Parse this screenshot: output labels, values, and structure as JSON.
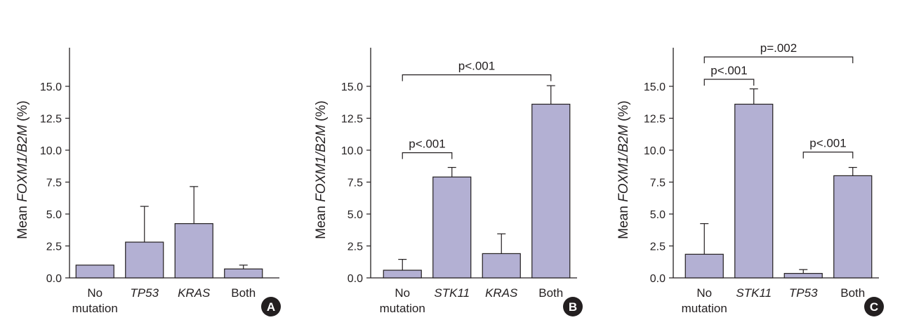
{
  "colors": {
    "bar_fill": "#b3b0d3",
    "bar_stroke": "#231f20",
    "axis": "#231f20",
    "badge": "#231f20",
    "badge_text": "#ffffff"
  },
  "chart_data": [
    {
      "type": "bar",
      "panel_label": "A",
      "ylabel": {
        "prefix": "Mean ",
        "italic": "FOXM1/B2M",
        "suffix": " (%)"
      },
      "ylim": [
        0,
        17.5
      ],
      "yticks": [
        "0.0",
        "2.5",
        "5.0",
        "7.5",
        "10.0",
        "12.5",
        "15.0"
      ],
      "grid": false,
      "categories": [
        {
          "lines": [
            "No",
            "mutation"
          ],
          "italic": false
        },
        {
          "lines": [
            "TP53"
          ],
          "italic": true
        },
        {
          "lines": [
            "KRAS"
          ],
          "italic": true
        },
        {
          "lines": [
            "Both"
          ],
          "italic": false
        }
      ],
      "values": [
        1.0,
        2.8,
        4.25,
        0.7
      ],
      "error": [
        0,
        2.8,
        2.9,
        0.3
      ],
      "significance": []
    },
    {
      "type": "bar",
      "panel_label": "B",
      "ylabel": {
        "prefix": "Mean ",
        "italic": "FOXM1/B2M",
        "suffix": " (%)"
      },
      "ylim": [
        0,
        17.5
      ],
      "yticks": [
        "0.0",
        "2.5",
        "5.0",
        "7.5",
        "10.0",
        "12.5",
        "15.0"
      ],
      "grid": false,
      "categories": [
        {
          "lines": [
            "No",
            "mutation"
          ],
          "italic": false
        },
        {
          "lines": [
            "STK11"
          ],
          "italic": true
        },
        {
          "lines": [
            "KRAS"
          ],
          "italic": true
        },
        {
          "lines": [
            "Both"
          ],
          "italic": false
        }
      ],
      "values": [
        0.6,
        7.9,
        1.9,
        13.6
      ],
      "error": [
        0.85,
        0.75,
        1.55,
        1.45
      ],
      "significance": [
        {
          "from": 0,
          "to": 1,
          "label": "p<.001",
          "level": 9.8
        },
        {
          "from": 0,
          "to": 3,
          "label": "p<.001",
          "level": 15.9
        }
      ]
    },
    {
      "type": "bar",
      "panel_label": "C",
      "ylabel": {
        "prefix": "Mean ",
        "italic": "FOXM1/B2M",
        "suffix": " (%)"
      },
      "ylim": [
        0,
        17.5
      ],
      "yticks": [
        "0.0",
        "2.5",
        "5.0",
        "7.5",
        "10.0",
        "12.5",
        "15.0"
      ],
      "grid": false,
      "categories": [
        {
          "lines": [
            "No",
            "mutation"
          ],
          "italic": false
        },
        {
          "lines": [
            "STK11"
          ],
          "italic": true
        },
        {
          "lines": [
            "TP53"
          ],
          "italic": true
        },
        {
          "lines": [
            "Both"
          ],
          "italic": false
        }
      ],
      "values": [
        1.85,
        13.6,
        0.35,
        8.0
      ],
      "error": [
        2.4,
        1.2,
        0.3,
        0.65
      ],
      "significance": [
        {
          "from": 0,
          "to": 1,
          "label": "p<.001",
          "level": 15.55
        },
        {
          "from": 2,
          "to": 3,
          "label": "p<.001",
          "level": 9.85
        },
        {
          "from": 0,
          "to": 3,
          "label": "p=.002",
          "level": 17.3
        }
      ]
    }
  ]
}
